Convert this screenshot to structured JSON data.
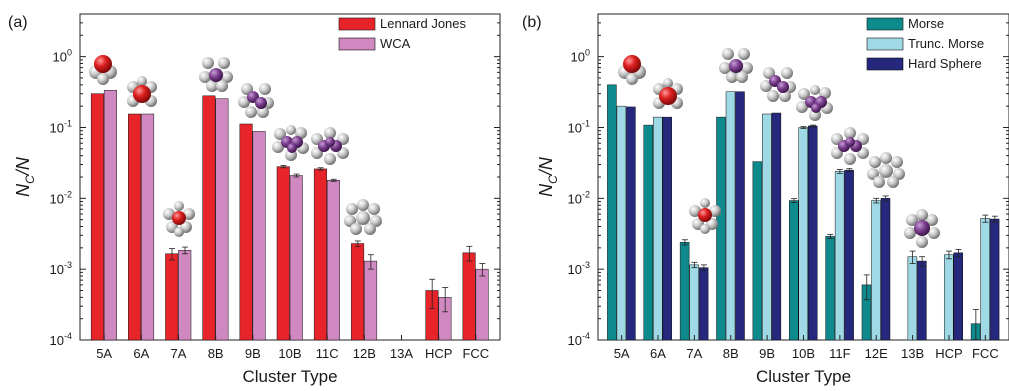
{
  "chart_data": [
    {
      "type": "bar",
      "panel_label": "(a)",
      "xlabel": "Cluster Type",
      "ylabel": "N_C/N",
      "yscale": "log",
      "ylim": [
        0.0001,
        4
      ],
      "yticks": [
        {
          "value": 0.0001,
          "mant": "10",
          "exp": "-4"
        },
        {
          "value": 0.001,
          "mant": "10",
          "exp": "-3"
        },
        {
          "value": 0.01,
          "mant": "10",
          "exp": "-2"
        },
        {
          "value": 0.1,
          "mant": "10",
          "exp": "-1"
        },
        {
          "value": 1,
          "mant": "10",
          "exp": "0"
        }
      ],
      "grid": false,
      "legend_position": "top-right",
      "categories": [
        "5A",
        "6A",
        "7A",
        "8B",
        "9B",
        "10B",
        "11C",
        "12B",
        "13A",
        "HCP",
        "FCC"
      ],
      "series": [
        {
          "name": "Lennard Jones",
          "color": "#e8242b",
          "values": [
            0.3,
            0.155,
            0.00165,
            0.28,
            0.112,
            0.028,
            0.026,
            0.0023,
            null,
            0.0005,
            0.0017
          ],
          "errors": [
            0,
            0,
            0.0003,
            0,
            0,
            0.001,
            0.001,
            0.0002,
            0,
            0.00022,
            0.0004
          ]
        },
        {
          "name": "WCA",
          "color": "#cf88c0",
          "values": [
            0.335,
            0.155,
            0.00185,
            0.255,
            0.088,
            0.021,
            0.018,
            0.0013,
            null,
            0.0004,
            0.001
          ],
          "errors": [
            0,
            0,
            0.0002,
            0,
            0,
            0.001,
            0.0006,
            0.0003,
            0,
            0.00015,
            0.0002
          ]
        }
      ],
      "insets": [
        "5A",
        "6A",
        "7A",
        "8B",
        "9B",
        "10B",
        "11C",
        "12B"
      ]
    },
    {
      "type": "bar",
      "panel_label": "(b)",
      "xlabel": "Cluster Type",
      "ylabel": "N_C/N",
      "yscale": "log",
      "ylim": [
        0.0001,
        4
      ],
      "yticks": [
        {
          "value": 0.0001,
          "mant": "10",
          "exp": "-4"
        },
        {
          "value": 0.001,
          "mant": "10",
          "exp": "-3"
        },
        {
          "value": 0.01,
          "mant": "10",
          "exp": "-2"
        },
        {
          "value": 0.1,
          "mant": "10",
          "exp": "-1"
        },
        {
          "value": 1,
          "mant": "10",
          "exp": "0"
        }
      ],
      "grid": false,
      "legend_position": "top-right",
      "categories": [
        "5A",
        "6A",
        "7A",
        "8B",
        "9B",
        "10B",
        "11F",
        "12E",
        "13B",
        "HCP",
        "FCC"
      ],
      "series": [
        {
          "name": "Morse",
          "color": "#0f8a8c",
          "values": [
            0.4,
            0.108,
            0.0024,
            0.14,
            0.033,
            0.0093,
            0.0029,
            0.0006,
            null,
            null,
            0.00017
          ],
          "errors": [
            0,
            0,
            0.0002,
            0,
            0,
            0.0006,
            0.0002,
            0.00023,
            0,
            0,
            0.0001
          ]
        },
        {
          "name": "Trunc. Morse",
          "color": "#9fd9e6",
          "values": [
            0.2,
            0.14,
            0.00115,
            0.32,
            0.155,
            0.1,
            0.024,
            0.0093,
            0.0015,
            0.0016,
            0.0052
          ],
          "errors": [
            0,
            0,
            0.0001,
            0,
            0,
            0.003,
            0.0015,
            0.0007,
            0.0003,
            0.0002,
            0.0006
          ]
        },
        {
          "name": "Hard Sphere",
          "color": "#25287c",
          "values": [
            0.195,
            0.14,
            0.00105,
            0.32,
            0.16,
            0.105,
            0.025,
            0.01,
            0.0013,
            0.0017,
            0.0051
          ],
          "errors": [
            0,
            0,
            0.0001,
            0,
            0,
            0.003,
            0.0012,
            0.0008,
            0.0002,
            0.0002,
            0.0005
          ]
        }
      ],
      "insets": [
        "5A",
        "6A",
        "7A",
        "8B",
        "9B",
        "10B",
        "11F",
        "12E",
        "13B"
      ]
    }
  ]
}
